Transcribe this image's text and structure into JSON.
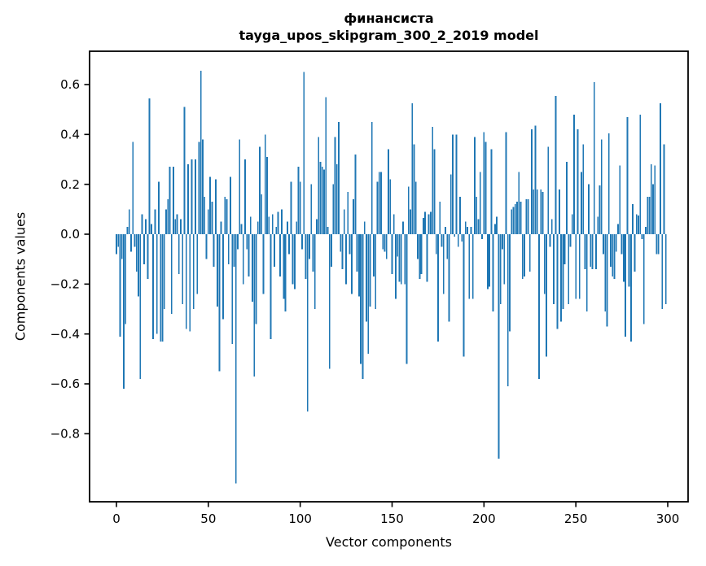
{
  "figure": {
    "title_line1": "финансиста",
    "title_line2": "tayga_upos_skipgram_300_2_2019 model",
    "xlabel": "Vector components",
    "ylabel": "Components values"
  },
  "chart_data": {
    "type": "bar",
    "title": "финансиста\ntayga_upos_skipgram_300_2_2019 model",
    "xlabel": "Vector components",
    "ylabel": "Components values",
    "bar_color": "#1f77b4",
    "grid": false,
    "legend": null,
    "xlim": [
      -14.6,
      311.1
    ],
    "ylim": [
      -1.073,
      0.734
    ],
    "xticks": [
      {
        "label": "0",
        "value": 0
      },
      {
        "label": "50",
        "value": 50
      },
      {
        "label": "100",
        "value": 100
      },
      {
        "label": "150",
        "value": 150
      },
      {
        "label": "200",
        "value": 200
      },
      {
        "label": "250",
        "value": 250
      },
      {
        "label": "300",
        "value": 300
      }
    ],
    "yticks": [
      {
        "label": "0.6",
        "value": 0.6
      },
      {
        "label": "0.4",
        "value": 0.4
      },
      {
        "label": "0.2",
        "value": 0.2
      },
      {
        "label": "0.0",
        "value": 0.0
      },
      {
        "label": "−0.2",
        "value": -0.2
      },
      {
        "label": "−0.4",
        "value": -0.4
      },
      {
        "label": "−0.6",
        "value": -0.6
      },
      {
        "label": "−0.8",
        "value": -0.8
      }
    ],
    "x_start": 0,
    "values": [
      -0.08,
      -0.05,
      -0.41,
      -0.1,
      -0.62,
      -0.36,
      0.03,
      0.1,
      -0.07,
      0.37,
      -0.05,
      -0.15,
      -0.25,
      -0.58,
      0.08,
      -0.12,
      0.06,
      -0.18,
      0.545,
      0.04,
      -0.42,
      0.1,
      -0.4,
      0.21,
      -0.43,
      -0.43,
      -0.3,
      0.1,
      0.14,
      0.27,
      -0.32,
      0.27,
      0.06,
      0.08,
      -0.16,
      0.06,
      -0.28,
      0.51,
      -0.38,
      0.28,
      -0.39,
      0.3,
      -0.3,
      0.3,
      -0.24,
      0.37,
      0.655,
      0.38,
      0.15,
      -0.1,
      0.1,
      0.23,
      0.13,
      -0.13,
      0.22,
      -0.29,
      -0.55,
      0.05,
      -0.34,
      0.15,
      0.14,
      -0.12,
      0.23,
      -0.44,
      -0.13,
      -1.0,
      -0.06,
      0.38,
      0.04,
      -0.2,
      0.3,
      -0.06,
      -0.17,
      0.07,
      -0.27,
      -0.57,
      -0.36,
      0.05,
      0.35,
      0.16,
      -0.24,
      0.4,
      0.31,
      0.07,
      -0.42,
      0.08,
      -0.13,
      0.03,
      0.09,
      -0.17,
      0.1,
      -0.26,
      -0.31,
      0.05,
      -0.08,
      0.21,
      -0.2,
      -0.22,
      0.05,
      0.27,
      0.21,
      -0.06,
      0.65,
      -0.18,
      -0.71,
      -0.1,
      0.2,
      -0.15,
      -0.3,
      0.06,
      0.39,
      0.29,
      0.27,
      0.26,
      0.55,
      0.03,
      -0.54,
      -0.13,
      0.2,
      0.39,
      0.28,
      0.45,
      -0.07,
      -0.14,
      0.1,
      -0.2,
      0.17,
      -0.08,
      -0.24,
      0.14,
      0.32,
      -0.15,
      -0.25,
      -0.52,
      -0.58,
      0.05,
      -0.35,
      -0.48,
      -0.29,
      0.45,
      -0.17,
      -0.3,
      0.21,
      0.25,
      0.25,
      -0.06,
      -0.07,
      -0.1,
      0.34,
      0.22,
      -0.16,
      0.08,
      -0.26,
      -0.09,
      -0.19,
      -0.2,
      0.05,
      -0.2,
      -0.52,
      0.19,
      0.1,
      0.525,
      0.36,
      0.21,
      -0.1,
      -0.18,
      -0.16,
      0.065,
      0.09,
      -0.19,
      0.08,
      0.09,
      0.43,
      0.34,
      -0.08,
      -0.43,
      0.13,
      -0.05,
      -0.24,
      0.03,
      -0.1,
      -0.35,
      0.24,
      0.4,
      -0.01,
      0.4,
      -0.05,
      0.15,
      -0.03,
      -0.49,
      0.05,
      0.03,
      -0.26,
      0.03,
      -0.26,
      0.39,
      0.15,
      0.06,
      0.25,
      -0.02,
      0.41,
      0.37,
      -0.22,
      -0.21,
      0.34,
      -0.31,
      0.04,
      0.07,
      -0.9,
      -0.28,
      -0.06,
      -0.2,
      0.41,
      -0.61,
      -0.39,
      0.1,
      0.11,
      0.12,
      0.13,
      0.25,
      0.13,
      -0.18,
      -0.17,
      0.14,
      0.14,
      -0.15,
      0.42,
      0.18,
      0.435,
      0.18,
      -0.58,
      0.18,
      0.17,
      -0.24,
      -0.49,
      0.35,
      -0.05,
      0.06,
      -0.28,
      0.555,
      -0.38,
      0.18,
      -0.35,
      -0.3,
      -0.12,
      0.29,
      -0.28,
      -0.05,
      0.08,
      0.48,
      -0.26,
      0.42,
      -0.26,
      0.25,
      0.36,
      -0.14,
      -0.31,
      0.2,
      -0.13,
      -0.14,
      0.61,
      -0.14,
      0.07,
      0.195,
      0.38,
      -0.08,
      -0.31,
      -0.37,
      0.405,
      -0.13,
      -0.17,
      -0.18,
      -0.07,
      0.04,
      0.275,
      -0.08,
      -0.19,
      -0.41,
      0.47,
      -0.21,
      -0.43,
      0.12,
      -0.15,
      0.08,
      0.075,
      0.48,
      -0.02,
      -0.36,
      0.03,
      0.15,
      0.15,
      0.28,
      0.2,
      0.275,
      -0.08,
      -0.08,
      0.525,
      -0.3,
      0.36,
      -0.28
    ]
  }
}
